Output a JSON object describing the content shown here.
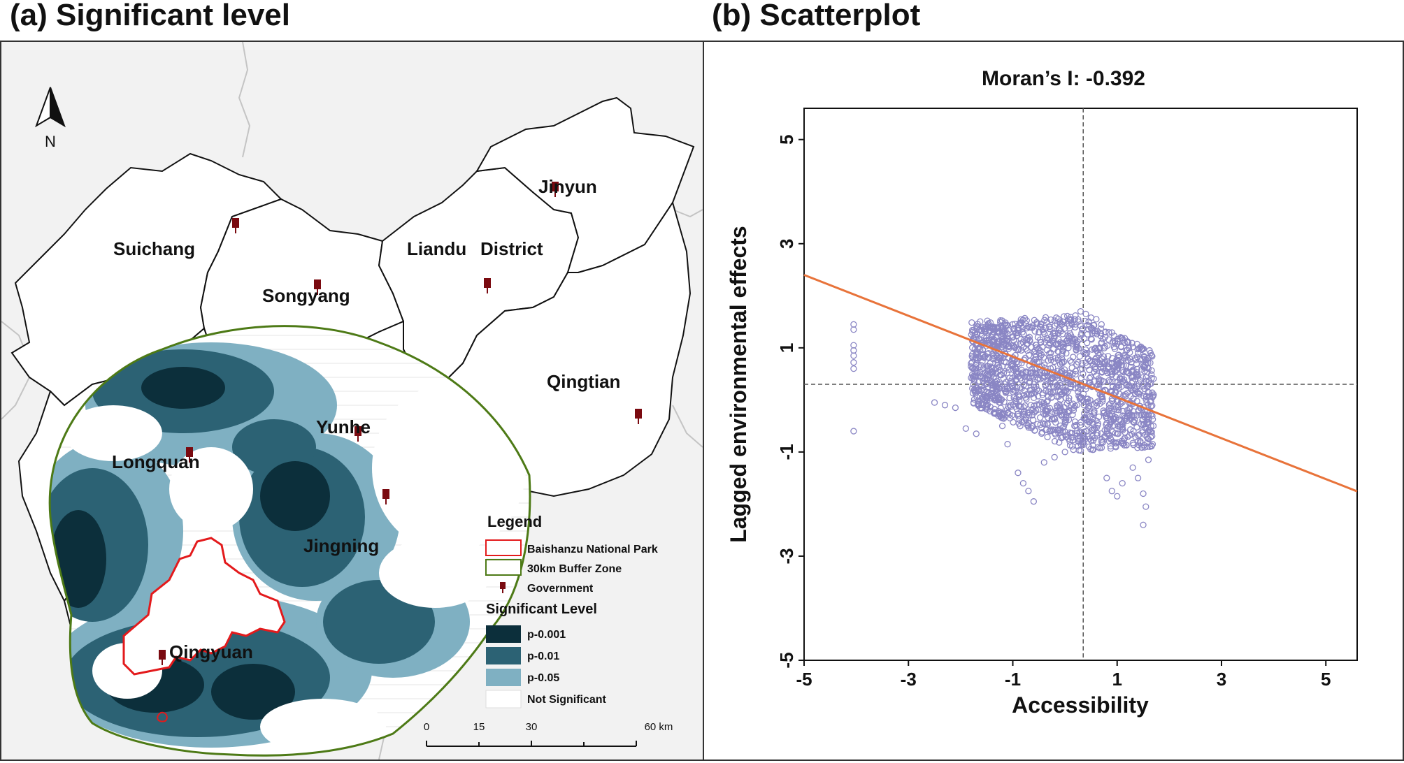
{
  "panel_a": {
    "title": "(a) Significant level",
    "north_label": "N",
    "places": [
      {
        "name": "Suichang"
      },
      {
        "name": "Songyang"
      },
      {
        "name": "Liandu"
      },
      {
        "name": "District"
      },
      {
        "name": "Jinyun"
      },
      {
        "name": "Qingtian"
      },
      {
        "name": "Yunhe"
      },
      {
        "name": "Longquan"
      },
      {
        "name": "Jingning"
      },
      {
        "name": "Qingyuan"
      }
    ],
    "legend": {
      "title": "Legend",
      "items": [
        "Baishanzu National Park",
        "30km Buffer Zone",
        "Government"
      ],
      "sig_title": "Significant Level",
      "sig_items": [
        "p-0.001",
        "p-0.01",
        "p-0.05",
        "Not Significant"
      ],
      "sig_colors": [
        "#0c2f3b",
        "#2c6274",
        "#7fb0c2",
        "#ffffff"
      ]
    },
    "scalebar": {
      "ticks": [
        "0",
        "15",
        "30",
        "60 km"
      ]
    },
    "colors": {
      "park": "#e31a1c",
      "buffer": "#4d7a16",
      "gov": "#7a0a10",
      "background": "#f2f2f2"
    }
  },
  "panel_b": {
    "title": "(b) Scatterplot",
    "chart_data": {
      "type": "scatter",
      "title": "Moran’s I: -0.392",
      "xlabel": "Accessibility",
      "ylabel": "Lagged environmental effects",
      "xlim": [
        -5,
        5.6
      ],
      "ylim": [
        -5,
        5.6
      ],
      "xticks": [
        "-5",
        "-3",
        "-1",
        "1",
        "3",
        "5"
      ],
      "yticks": [
        "-5",
        "-3",
        "-1",
        "1",
        "3",
        "5"
      ],
      "mean_x": 0.35,
      "mean_y": 0.3,
      "regression": {
        "slope": -0.392,
        "intercept": 0.44,
        "color": "#e8733a"
      },
      "point_color": "#8a86c4",
      "points": [
        [
          -4.05,
          1.45
        ],
        [
          -4.05,
          1.35
        ],
        [
          -4.05,
          1.05
        ],
        [
          -4.05,
          0.95
        ],
        [
          -4.05,
          0.85
        ],
        [
          -4.05,
          0.72
        ],
        [
          -4.05,
          0.6
        ],
        [
          -4.05,
          -0.6
        ],
        [
          -2.5,
          -0.05
        ],
        [
          -2.3,
          -0.1
        ],
        [
          -2.1,
          -0.15
        ],
        [
          -1.9,
          -0.55
        ],
        [
          -1.7,
          -0.65
        ],
        [
          -1.7,
          0.9
        ],
        [
          -1.6,
          1.1
        ],
        [
          -1.5,
          0.6
        ],
        [
          -1.4,
          1.25
        ],
        [
          -1.3,
          0.2
        ],
        [
          -1.2,
          -0.5
        ],
        [
          -1.1,
          -0.85
        ],
        [
          -1.0,
          1.2
        ],
        [
          -0.9,
          -1.4
        ],
        [
          -0.8,
          -1.6
        ],
        [
          -0.7,
          -1.75
        ],
        [
          -0.6,
          -1.95
        ],
        [
          -0.5,
          1.3
        ],
        [
          -0.4,
          -1.2
        ],
        [
          -0.3,
          1.4
        ],
        [
          -0.2,
          -1.1
        ],
        [
          -0.1,
          1.5
        ],
        [
          0.0,
          -1.0
        ],
        [
          0.1,
          1.55
        ],
        [
          0.2,
          1.62
        ],
        [
          0.3,
          1.7
        ],
        [
          0.4,
          1.65
        ],
        [
          0.5,
          1.58
        ],
        [
          0.6,
          1.55
        ],
        [
          0.7,
          1.45
        ],
        [
          0.8,
          -1.5
        ],
        [
          0.9,
          -1.75
        ],
        [
          1.0,
          -1.85
        ],
        [
          1.1,
          -1.6
        ],
        [
          1.2,
          1.1
        ],
        [
          1.3,
          -1.3
        ],
        [
          1.4,
          -1.5
        ],
        [
          1.5,
          -1.8
        ],
        [
          1.55,
          -2.05
        ],
        [
          1.5,
          -2.4
        ],
        [
          1.6,
          -1.15
        ],
        [
          1.65,
          -0.5
        ],
        [
          1.7,
          0.1
        ],
        [
          1.6,
          0.6
        ],
        [
          1.4,
          0.9
        ]
      ]
    }
  }
}
